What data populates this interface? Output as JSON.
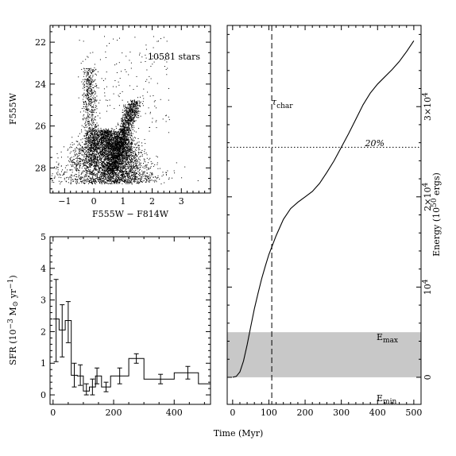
{
  "chart_data": [
    {
      "type": "scatter",
      "xlabel": "F555W − F814W",
      "ylabel": "F555W",
      "xlim": [
        -1.5,
        4.0
      ],
      "ylim": [
        29.2,
        21.2
      ],
      "y_inverted": true,
      "x_ticks": [
        -1,
        0,
        1,
        2,
        3
      ],
      "y_ticks": [
        22,
        24,
        26,
        28
      ],
      "annotation": "10581 stars",
      "star_count": 10581
    },
    {
      "type": "line",
      "step": true,
      "xlabel": "Time (Myr)",
      "ylabel": "SFR (10⁻³ M☉ yr⁻¹)",
      "ylabel_parts": [
        "SFR (10",
        "−3",
        " M",
        "⊙",
        " yr",
        "−1",
        ")"
      ],
      "xlim": [
        -10,
        520
      ],
      "ylim": [
        -0.3,
        5.0
      ],
      "x_ticks": [
        0,
        200,
        400
      ],
      "y_ticks": [
        0,
        1,
        2,
        3,
        4,
        5
      ],
      "bins": [
        {
          "x0": 0,
          "x1": 20,
          "y": 2.4
        },
        {
          "x0": 20,
          "x1": 40,
          "y": 2.05
        },
        {
          "x0": 40,
          "x1": 60,
          "y": 2.35
        },
        {
          "x0": 60,
          "x1": 80,
          "y": 0.62
        },
        {
          "x0": 80,
          "x1": 100,
          "y": 0.6
        },
        {
          "x0": 100,
          "x1": 120,
          "y": 0.12
        },
        {
          "x0": 120,
          "x1": 140,
          "y": 0.25
        },
        {
          "x0": 140,
          "x1": 160,
          "y": 0.6
        },
        {
          "x0": 160,
          "x1": 190,
          "y": 0.25
        },
        {
          "x0": 190,
          "x1": 250,
          "y": 0.6
        },
        {
          "x0": 250,
          "x1": 300,
          "y": 1.15
        },
        {
          "x0": 300,
          "x1": 330,
          "y": 0.5
        },
        {
          "x0": 330,
          "x1": 400,
          "y": 0.5
        },
        {
          "x0": 400,
          "x1": 480,
          "y": 0.7
        },
        {
          "x0": 480,
          "x1": 520,
          "y": 0.35
        }
      ],
      "errorbars": [
        {
          "x": 10,
          "y": 2.35,
          "lo": 1.05,
          "hi": 3.65
        },
        {
          "x": 30,
          "y": 2.05,
          "lo": 1.2,
          "hi": 2.85
        },
        {
          "x": 50,
          "y": 2.35,
          "lo": 1.65,
          "hi": 2.95
        },
        {
          "x": 70,
          "y": 0.62,
          "lo": 0.25,
          "hi": 1.0
        },
        {
          "x": 90,
          "y": 0.6,
          "lo": 0.3,
          "hi": 0.95
        },
        {
          "x": 110,
          "y": 0.12,
          "lo": 0.0,
          "hi": 0.35
        },
        {
          "x": 130,
          "y": 0.25,
          "lo": 0.0,
          "hi": 0.5
        },
        {
          "x": 145,
          "y": 0.6,
          "lo": 0.35,
          "hi": 0.85
        },
        {
          "x": 175,
          "y": 0.25,
          "lo": 0.1,
          "hi": 0.4
        },
        {
          "x": 220,
          "y": 0.6,
          "lo": 0.35,
          "hi": 0.85
        },
        {
          "x": 275,
          "y": 1.15,
          "lo": 1.0,
          "hi": 1.3
        },
        {
          "x": 355,
          "y": 0.5,
          "lo": 0.35,
          "hi": 0.65
        },
        {
          "x": 445,
          "y": 0.7,
          "lo": 0.5,
          "hi": 0.9
        }
      ]
    },
    {
      "type": "line",
      "xlabel": "Time (Myr)",
      "ylabel": "Energy (10⁵⁰ ergs)",
      "ylabel_parts": [
        "Energy (10",
        "50",
        " ergs)"
      ],
      "xlim": [
        -15,
        520
      ],
      "ylim": [
        -3000,
        39000
      ],
      "x_ticks": [
        0,
        100,
        200,
        300,
        400,
        500
      ],
      "y_tick_values": [
        0,
        10000,
        20000,
        30000
      ],
      "y_tick_labels": [
        {
          "base": "0",
          "exp": ""
        },
        {
          "base": "10",
          "exp": "4"
        },
        {
          "base": "2×10",
          "exp": "4"
        },
        {
          "base": "3×10",
          "exp": "4"
        }
      ],
      "series": [
        {
          "x": [
            0,
            10,
            20,
            30,
            40,
            50,
            60,
            70,
            80,
            90,
            100,
            120,
            140,
            160,
            180,
            200,
            220,
            240,
            260,
            280,
            300,
            320,
            340,
            360,
            380,
            400,
            420,
            440,
            460,
            480,
            500
          ],
          "y": [
            0,
            100,
            600,
            1800,
            3600,
            5600,
            7600,
            9300,
            10900,
            12300,
            13600,
            15700,
            17500,
            18700,
            19400,
            20000,
            20600,
            21500,
            22700,
            24000,
            25500,
            27000,
            28600,
            30200,
            31500,
            32500,
            33300,
            34100,
            35000,
            36100,
            37300
          ]
        }
      ],
      "vline": {
        "x": 108,
        "label": "τ",
        "sub": "char"
      },
      "hline": {
        "y": 25500,
        "label": "20%"
      },
      "band": {
        "y0": 0,
        "y1": 5000,
        "label_max": "E",
        "label_max_sub": "max",
        "label_min": "E",
        "label_min_sub": "min"
      }
    }
  ]
}
